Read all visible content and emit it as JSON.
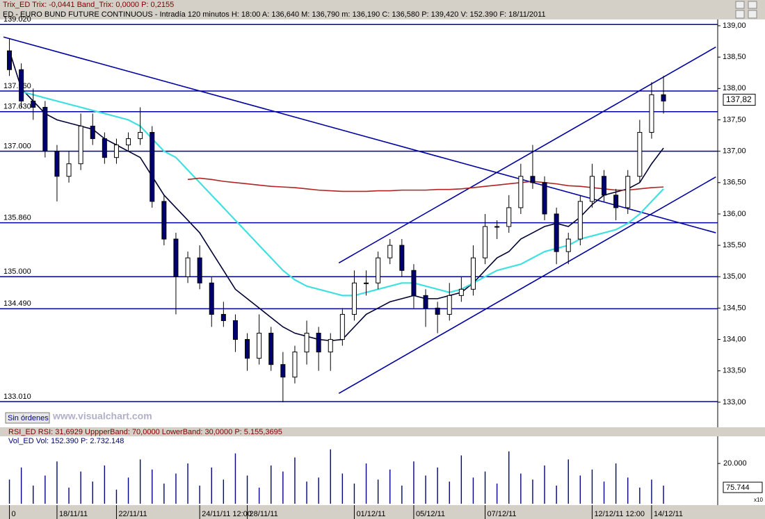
{
  "window": {
    "title_bar": "Trix_ED  Trix: -0,0441  Band_Trix: 0,0000  P: 0,2155",
    "header": "ED - EURO BUND FUTURE CONTINUOUS - Intradía 120 minutos  H: 18:00  A: 136,640  M: 136,790  m: 136,190  C: 136,580  P: 139,420  V: 152.390  F: 18/11/2011",
    "button": "Sin órdenes",
    "watermark": "www.visualchart.com",
    "rsi_header": "RSI_ED  RSI: 31,6929  UppperBand: 70,0000  LowerBand: 30,0000  P: 5.155,3695",
    "vol_header": "Vol_ED  Vol: 152.390  P: 2.732.148",
    "vol_last": "75.744",
    "scale_note": "x10"
  },
  "chart_data": [
    {
      "type": "candlestick",
      "categories": [
        "0",
        null,
        null,
        null,
        "18/11/11",
        null,
        null,
        null,
        null,
        "22/11/11",
        null,
        null,
        null,
        null,
        null,
        null,
        "24/11/11 12:00",
        null,
        null,
        null,
        "28/11/11",
        null,
        null,
        null,
        null,
        null,
        null,
        null,
        null,
        "01/12/11",
        null,
        null,
        null,
        null,
        "05/12/11",
        null,
        null,
        null,
        null,
        null,
        "07/12/11",
        null,
        null,
        null,
        null,
        null,
        null,
        null,
        null,
        "12/12/11 12:00",
        null,
        null,
        null,
        null,
        "14/12/11",
        null
      ],
      "open": [
        138.6,
        138.3,
        137.8,
        137.7,
        137.0,
        136.6,
        136.8,
        137.4,
        137.2,
        136.9,
        137.1,
        137.2,
        137.3,
        136.2,
        135.6,
        135.0,
        135.3,
        134.9,
        134.4,
        134.3,
        134.0,
        133.7,
        134.1,
        133.6,
        133.4,
        133.8,
        134.1,
        133.8,
        134.0,
        134.4,
        134.9,
        134.9,
        135.3,
        135.5,
        135.1,
        134.7,
        134.5,
        134.4,
        134.7,
        134.8,
        135.3,
        135.8,
        135.8,
        136.1,
        136.6,
        136.5,
        136.0,
        135.4,
        135.6,
        136.2,
        136.6,
        136.3,
        136.1,
        136.6,
        137.3,
        137.9
      ],
      "high": [
        138.8,
        138.4,
        138.0,
        137.8,
        137.1,
        137.0,
        137.6,
        137.6,
        137.3,
        137.2,
        137.3,
        137.7,
        137.4,
        136.3,
        135.7,
        135.4,
        135.5,
        135.0,
        134.6,
        134.4,
        134.1,
        134.4,
        134.2,
        133.8,
        133.9,
        134.3,
        134.2,
        134.1,
        134.5,
        135.1,
        135.1,
        135.4,
        135.6,
        135.6,
        135.2,
        134.8,
        134.6,
        134.9,
        135.0,
        135.5,
        136.0,
        135.9,
        136.3,
        136.8,
        137.1,
        136.6,
        136.1,
        135.7,
        136.3,
        136.8,
        136.7,
        136.4,
        136.7,
        137.5,
        138.1,
        138.2
      ],
      "low": [
        138.2,
        137.7,
        137.5,
        136.9,
        136.2,
        136.5,
        136.7,
        137.1,
        136.8,
        136.8,
        137.0,
        137.1,
        136.1,
        135.5,
        134.4,
        134.9,
        134.8,
        134.2,
        134.2,
        133.8,
        133.5,
        133.6,
        133.5,
        133.0,
        133.3,
        133.6,
        133.5,
        133.5,
        133.9,
        134.3,
        134.7,
        134.8,
        135.2,
        135.0,
        134.5,
        134.2,
        134.1,
        134.3,
        134.6,
        134.7,
        135.2,
        135.6,
        135.7,
        136.0,
        136.4,
        135.9,
        135.2,
        135.2,
        135.5,
        136.1,
        136.2,
        135.9,
        136.0,
        136.5,
        137.2,
        137.6
      ],
      "close": [
        138.3,
        137.8,
        137.7,
        137.0,
        136.6,
        136.8,
        137.4,
        137.2,
        136.9,
        137.1,
        137.2,
        137.3,
        136.2,
        135.6,
        135.0,
        135.3,
        134.9,
        134.4,
        134.3,
        134.0,
        133.7,
        134.1,
        133.6,
        133.4,
        133.8,
        134.1,
        133.8,
        134.0,
        134.4,
        134.9,
        134.9,
        135.3,
        135.5,
        135.1,
        134.7,
        134.5,
        134.4,
        134.7,
        134.8,
        135.3,
        135.8,
        135.8,
        136.1,
        136.6,
        136.5,
        136.0,
        135.4,
        135.6,
        136.2,
        136.6,
        136.3,
        136.1,
        136.6,
        137.3,
        137.9,
        137.8
      ],
      "up_color": "#ffffff",
      "down_color": "#000070",
      "series": [
        {
          "color": "#000033",
          "values": [
            138.6,
            138.0,
            137.8,
            137.6,
            137.5,
            137.45,
            137.4,
            137.35,
            137.2,
            137.1,
            137.0,
            136.9,
            136.6,
            136.3,
            136.1,
            135.9,
            135.7,
            135.4,
            135.1,
            134.8,
            134.65,
            134.5,
            134.35,
            134.2,
            134.1,
            134.05,
            134.0,
            133.98,
            134.0,
            134.2,
            134.4,
            134.5,
            134.6,
            134.65,
            134.7,
            134.65,
            134.65,
            134.7,
            134.75,
            134.9,
            135.1,
            135.3,
            135.4,
            135.6,
            135.7,
            135.8,
            135.85,
            135.8,
            135.95,
            136.15,
            136.3,
            136.35,
            136.4,
            136.5,
            136.8,
            137.05
          ]
        },
        {
          "color": "#40e0e0",
          "values": [
            null,
            137.95,
            137.9,
            137.85,
            137.8,
            137.75,
            137.7,
            137.65,
            137.6,
            137.55,
            137.5,
            137.4,
            137.2,
            137.0,
            136.9,
            136.7,
            136.5,
            136.3,
            136.1,
            135.9,
            135.7,
            135.5,
            135.3,
            135.1,
            134.95,
            134.85,
            134.8,
            134.75,
            134.7,
            134.7,
            134.75,
            134.8,
            134.85,
            134.9,
            134.9,
            134.85,
            134.8,
            134.75,
            134.8,
            134.9,
            135.0,
            135.1,
            135.15,
            135.2,
            135.3,
            135.4,
            135.45,
            135.5,
            135.6,
            135.65,
            135.7,
            135.75,
            135.85,
            136.0,
            136.2,
            136.4
          ]
        },
        {
          "color": "#b22222",
          "values": [
            null,
            null,
            null,
            null,
            null,
            null,
            null,
            null,
            null,
            null,
            null,
            null,
            null,
            null,
            null,
            136.55,
            136.57,
            136.55,
            136.52,
            136.5,
            136.48,
            136.46,
            136.44,
            136.43,
            136.42,
            136.4,
            136.38,
            136.37,
            136.36,
            136.36,
            136.36,
            136.37,
            136.37,
            136.38,
            136.38,
            136.38,
            136.39,
            136.39,
            136.4,
            136.42,
            136.44,
            136.46,
            136.48,
            136.5,
            136.52,
            136.5,
            136.48,
            136.45,
            136.44,
            136.42,
            136.4,
            136.38,
            136.38,
            136.4,
            136.42,
            136.43
          ]
        }
      ],
      "levels": [
        {
          "value": 139.02,
          "label": "139.020"
        },
        {
          "value": 137.96,
          "label": "137.960"
        },
        {
          "value": 137.63,
          "label": "137.630"
        },
        {
          "value": 137.0,
          "label": "137.000"
        },
        {
          "value": 135.86,
          "label": "135.860"
        },
        {
          "value": 135.0,
          "label": "135.000"
        },
        {
          "value": 134.49,
          "label": "134.490"
        },
        {
          "value": 133.01,
          "label": "133.010"
        }
      ],
      "level_color": "#0000a0",
      "trendlines": [
        {
          "x": [
            -0.5,
            59.4
          ],
          "y": [
            138.82,
            135.7
          ]
        },
        {
          "x": [
            27.7,
            59.4
          ],
          "y": [
            135.22,
            138.66
          ]
        },
        {
          "x": [
            27.7,
            59.4
          ],
          "y": [
            133.14,
            136.59
          ]
        }
      ],
      "last": {
        "value": 137.82,
        "label": "137,82"
      },
      "ylim": [
        132.6,
        139.1
      ],
      "yticks": [
        {
          "value": 133,
          "label": "133,00"
        },
        {
          "value": 133.5,
          "label": "133,50"
        },
        {
          "value": 134,
          "label": "134,00"
        },
        {
          "value": 134.5,
          "label": "134,50"
        },
        {
          "value": 135,
          "label": "135,00"
        },
        {
          "value": 135.5,
          "label": "135,50"
        },
        {
          "value": 136,
          "label": "136,00"
        },
        {
          "value": 136.5,
          "label": "136,50"
        },
        {
          "value": 137,
          "label": "137,00"
        },
        {
          "value": 137.5,
          "label": "137,50"
        },
        {
          "value": 138,
          "label": "138,00"
        },
        {
          "value": 138.5,
          "label": "138,50"
        },
        {
          "value": 139,
          "label": "139,00"
        }
      ]
    },
    {
      "type": "bar",
      "color": "#000080",
      "values": [
        12000,
        18000,
        9000,
        14000,
        21000,
        8000,
        16000,
        11000,
        19000,
        7000,
        13000,
        22000,
        17000,
        10000,
        15000,
        20000,
        9000,
        18000,
        12000,
        25000,
        14000,
        8000,
        19000,
        16000,
        23000,
        11000,
        13000,
        27000,
        15000,
        10000,
        20000,
        12000,
        17000,
        9000,
        21000,
        14000,
        18000,
        11000,
        24000,
        13000,
        16000,
        10000,
        26000,
        15000,
        12000,
        19000,
        9000,
        22000,
        14000,
        17000,
        11000,
        20000,
        13000,
        8000,
        12000,
        9000
      ],
      "ylim": [
        0,
        29000
      ],
      "yticks": [
        {
          "value": 20000,
          "label": "20.000"
        }
      ]
    }
  ]
}
